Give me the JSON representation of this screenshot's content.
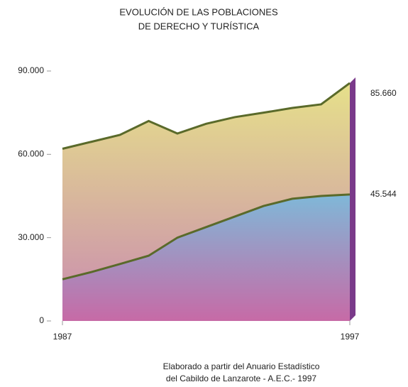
{
  "chart_data": {
    "type": "area",
    "title": [
      "EVOLUCIÓN DE LAS POBLACIONES",
      "DE DERECHO Y TURÍSTICA"
    ],
    "note": [
      "Elaborado a partir del Anuario Estadístico",
      "del Cabildo de Lanzarote - A.E.C.- 1997"
    ],
    "x": [
      1987,
      1988,
      1989,
      1990,
      1991,
      1992,
      1993,
      1994,
      1995,
      1996,
      1997
    ],
    "xlim": [
      1987,
      1997
    ],
    "xticks": [
      1987,
      1997
    ],
    "ylim": [
      0,
      90000
    ],
    "yticks": [
      0,
      {
        "value": 30000,
        "label": "30.000"
      },
      {
        "value": 60000,
        "label": "60.000"
      },
      {
        "value": 90000,
        "label": "90.000"
      }
    ],
    "series": [
      {
        "color": "#e6e08a",
        "values": [
          62000,
          64500,
          67000,
          72000,
          67500,
          71000,
          73400,
          75000,
          76700,
          78000,
          85660
        ],
        "value_labels": [
          null,
          null,
          null,
          null,
          null,
          null,
          null,
          null,
          null,
          null,
          "85.660"
        ]
      },
      {
        "color": "#7fb8d8",
        "values": [
          15000,
          17600,
          20500,
          23500,
          30000,
          33800,
          37600,
          41400,
          44000,
          45000,
          45544
        ],
        "value_labels": [
          null,
          null,
          null,
          null,
          null,
          null,
          null,
          null,
          null,
          null,
          "45.544"
        ]
      }
    ]
  }
}
